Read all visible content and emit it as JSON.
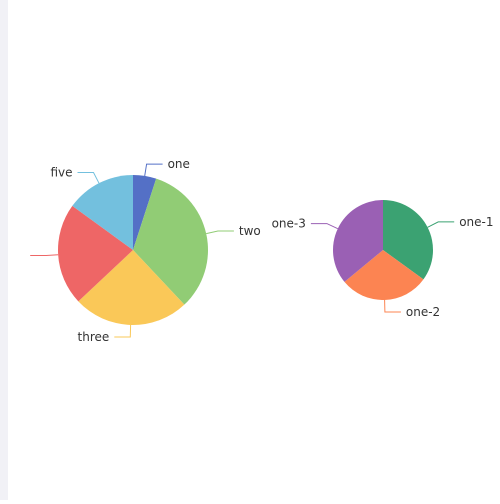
{
  "chart_data": [
    {
      "type": "pie",
      "slices": [
        {
          "name": "one",
          "value": 5,
          "color": "#5470c6"
        },
        {
          "name": "two",
          "value": 33,
          "color": "#91cc75"
        },
        {
          "name": "three",
          "value": 25,
          "color": "#fac858"
        },
        {
          "name": "",
          "value": 22,
          "color": "#ee6666"
        },
        {
          "name": "five",
          "value": 15,
          "color": "#73c0de"
        }
      ],
      "legend": "none",
      "start_angle_deg": 90,
      "direction": "clockwise"
    },
    {
      "type": "pie",
      "slices": [
        {
          "name": "one-1",
          "value": 35,
          "color": "#3ba272"
        },
        {
          "name": "one-2",
          "value": 29,
          "color": "#fc8452"
        },
        {
          "name": "one-3",
          "value": 36,
          "color": "#9a60b4"
        }
      ],
      "legend": "none",
      "start_angle_deg": 90,
      "direction": "clockwise"
    }
  ]
}
